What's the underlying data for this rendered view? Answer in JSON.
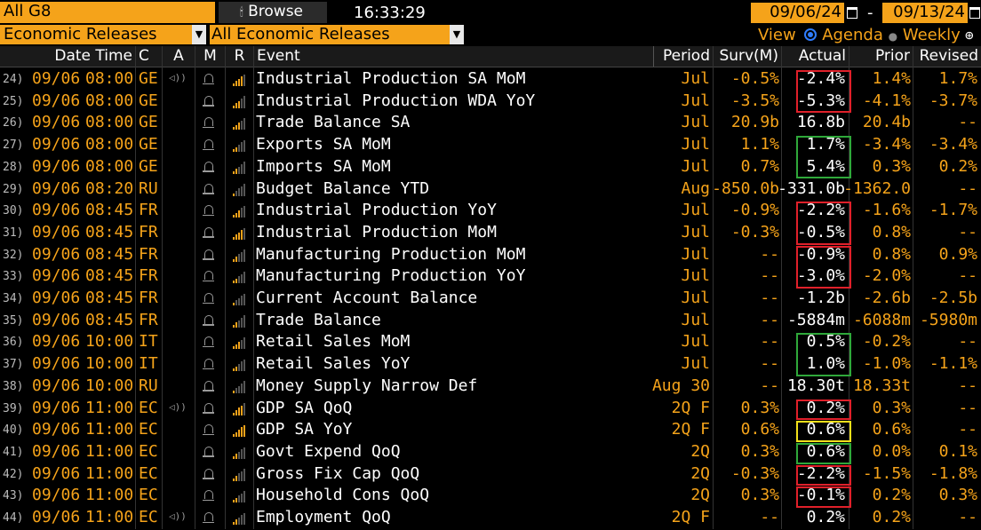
{
  "toolbar": {
    "group": "All G8",
    "browse": "Browse",
    "time": "16:33:29",
    "date_from": "09/06/24",
    "date_sep": "-",
    "date_to": "09/13/24",
    "category": "Economic Releases",
    "subcategory": "All Economic Releases",
    "view_label": "View",
    "view_agenda": "Agenda",
    "view_weekly": "Weekly",
    "zoom_icon": "magnifier-plus-icon"
  },
  "columns": {
    "datetime": "Date Time",
    "c": "C",
    "a": "A",
    "m": "M",
    "r": "R",
    "event": "Event",
    "period": "Period",
    "surv": "Surv(M)",
    "actual": "Actual",
    "prior": "Prior",
    "revised": "Revised"
  },
  "colors": {
    "accent": "#f5a31a",
    "red_box": "#e0202a",
    "green_box": "#2fa83a",
    "yellow_box": "#f2e01a"
  },
  "rows": [
    {
      "n": "24)",
      "date": "09/06",
      "time": "08:00",
      "c": "GE",
      "a": "speaker-icon",
      "bars": 4,
      "event": "Industrial Production SA MoM",
      "period": "Jul",
      "surv": "-0.5%",
      "actual": "-2.4%",
      "prior": "1.4%",
      "revised": "1.7%"
    },
    {
      "n": "25)",
      "date": "09/06",
      "time": "08:00",
      "c": "GE",
      "a": "",
      "bars": 3,
      "event": "Industrial Production WDA YoY",
      "period": "Jul",
      "surv": "-3.5%",
      "actual": "-5.3%",
      "prior": "-4.1%",
      "revised": "-3.7%"
    },
    {
      "n": "26)",
      "date": "09/06",
      "time": "08:00",
      "c": "GE",
      "a": "",
      "bars": 3,
      "event": "Trade Balance SA",
      "period": "Jul",
      "surv": "20.9b",
      "actual": "16.8b",
      "prior": "20.4b",
      "revised": "--"
    },
    {
      "n": "27)",
      "date": "09/06",
      "time": "08:00",
      "c": "GE",
      "a": "",
      "bars": 2,
      "event": "Exports SA MoM",
      "period": "Jul",
      "surv": "1.1%",
      "actual": "1.7%",
      "prior": "-3.4%",
      "revised": "-3.4%"
    },
    {
      "n": "28)",
      "date": "09/06",
      "time": "08:00",
      "c": "GE",
      "a": "",
      "bars": 2,
      "event": "Imports SA MoM",
      "period": "Jul",
      "surv": "0.7%",
      "actual": "5.4%",
      "prior": "0.3%",
      "revised": "0.2%"
    },
    {
      "n": "29)",
      "date": "09/06",
      "time": "08:20",
      "c": "RU",
      "a": "",
      "bars": 1,
      "event": "Budget Balance YTD",
      "period": "Aug",
      "surv": "-850.0b",
      "actual": "-331.0b",
      "prior": "-1362.0",
      "revised": "--"
    },
    {
      "n": "30)",
      "date": "09/06",
      "time": "08:45",
      "c": "FR",
      "a": "",
      "bars": 3,
      "event": "Industrial Production YoY",
      "period": "Jul",
      "surv": "-0.9%",
      "actual": "-2.2%",
      "prior": "-1.6%",
      "revised": "-1.7%"
    },
    {
      "n": "31)",
      "date": "09/06",
      "time": "08:45",
      "c": "FR",
      "a": "",
      "bars": 4,
      "event": "Industrial Production MoM",
      "period": "Jul",
      "surv": "-0.3%",
      "actual": "-0.5%",
      "prior": "0.8%",
      "revised": "--"
    },
    {
      "n": "32)",
      "date": "09/06",
      "time": "08:45",
      "c": "FR",
      "a": "",
      "bars": 2,
      "event": "Manufacturing Production MoM",
      "period": "Jul",
      "surv": "--",
      "actual": "-0.9%",
      "prior": "0.8%",
      "revised": "0.9%"
    },
    {
      "n": "33)",
      "date": "09/06",
      "time": "08:45",
      "c": "FR",
      "a": "",
      "bars": 2,
      "event": "Manufacturing Production YoY",
      "period": "Jul",
      "surv": "--",
      "actual": "-3.0%",
      "prior": "-2.0%",
      "revised": "--"
    },
    {
      "n": "34)",
      "date": "09/06",
      "time": "08:45",
      "c": "FR",
      "a": "",
      "bars": 1,
      "event": "Current Account Balance",
      "period": "Jul",
      "surv": "--",
      "actual": "-1.2b",
      "prior": "-2.6b",
      "revised": "-2.5b"
    },
    {
      "n": "35)",
      "date": "09/06",
      "time": "08:45",
      "c": "FR",
      "a": "",
      "bars": 2,
      "event": "Trade Balance",
      "period": "Jul",
      "surv": "--",
      "actual": "-5884m",
      "prior": "-6088m",
      "revised": "-5980m"
    },
    {
      "n": "36)",
      "date": "09/06",
      "time": "10:00",
      "c": "IT",
      "a": "",
      "bars": 3,
      "event": "Retail Sales MoM",
      "period": "Jul",
      "surv": "--",
      "actual": "0.5%",
      "prior": "-0.2%",
      "revised": "--"
    },
    {
      "n": "37)",
      "date": "09/06",
      "time": "10:00",
      "c": "IT",
      "a": "",
      "bars": 2,
      "event": "Retail Sales YoY",
      "period": "Jul",
      "surv": "--",
      "actual": "1.0%",
      "prior": "-1.0%",
      "revised": "-1.1%"
    },
    {
      "n": "38)",
      "date": "09/06",
      "time": "10:00",
      "c": "RU",
      "a": "",
      "bars": 1,
      "event": "Money Supply Narrow Def",
      "period": "Aug 30",
      "surv": "--",
      "actual": "18.30t",
      "prior": "18.33t",
      "revised": "--"
    },
    {
      "n": "39)",
      "date": "09/06",
      "time": "11:00",
      "c": "EC",
      "a": "speaker-icon",
      "bars": 4,
      "event": "GDP SA QoQ",
      "period": "2Q F",
      "surv": "0.3%",
      "actual": "0.2%",
      "prior": "0.3%",
      "revised": "--"
    },
    {
      "n": "40)",
      "date": "09/06",
      "time": "11:00",
      "c": "EC",
      "a": "",
      "bars": 5,
      "event": "GDP SA YoY",
      "period": "2Q F",
      "surv": "0.6%",
      "actual": "0.6%",
      "prior": "0.6%",
      "revised": "--"
    },
    {
      "n": "41)",
      "date": "09/06",
      "time": "11:00",
      "c": "EC",
      "a": "",
      "bars": 2,
      "event": "Govt Expend QoQ",
      "period": "2Q",
      "surv": "0.3%",
      "actual": "0.6%",
      "prior": "0.0%",
      "revised": "0.1%"
    },
    {
      "n": "42)",
      "date": "09/06",
      "time": "11:00",
      "c": "EC",
      "a": "",
      "bars": 2,
      "event": "Gross Fix Cap QoQ",
      "period": "2Q",
      "surv": "-0.3%",
      "actual": "-2.2%",
      "prior": "-1.5%",
      "revised": "-1.8%"
    },
    {
      "n": "43)",
      "date": "09/06",
      "time": "11:00",
      "c": "EC",
      "a": "",
      "bars": 2,
      "event": "Household Cons QoQ",
      "period": "2Q",
      "surv": "0.3%",
      "actual": "-0.1%",
      "prior": "0.2%",
      "revised": "0.3%"
    },
    {
      "n": "44)",
      "date": "09/06",
      "time": "11:00",
      "c": "EC",
      "a": "speaker-icon",
      "bars": 2,
      "event": "Employment QoQ",
      "period": "2Q F",
      "surv": "--",
      "actual": "0.2%",
      "prior": "0.2%",
      "revised": "--"
    }
  ],
  "highlight_boxes": [
    {
      "rows": [
        0,
        1
      ],
      "color": "red"
    },
    {
      "rows": [
        3,
        4
      ],
      "color": "green"
    },
    {
      "rows": [
        6,
        7
      ],
      "color": "red"
    },
    {
      "rows": [
        8,
        9
      ],
      "color": "red"
    },
    {
      "rows": [
        12,
        13
      ],
      "color": "green"
    },
    {
      "rows": [
        15,
        15
      ],
      "color": "red"
    },
    {
      "rows": [
        16,
        16
      ],
      "color": "yellow"
    },
    {
      "rows": [
        17,
        17
      ],
      "color": "green"
    },
    {
      "rows": [
        18,
        18
      ],
      "color": "red"
    },
    {
      "rows": [
        19,
        19
      ],
      "color": "red"
    }
  ]
}
